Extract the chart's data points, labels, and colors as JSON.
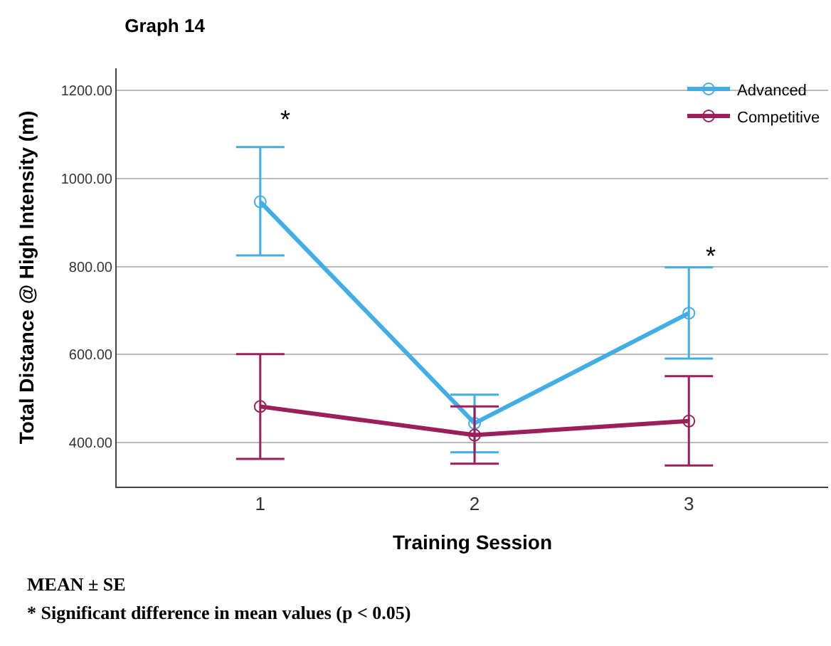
{
  "chart_data": {
    "type": "line",
    "title": "Graph 14",
    "xlabel": "Training Session",
    "ylabel": "Total Distance @ High Intensity (m)",
    "categories": [
      "1",
      "2",
      "3"
    ],
    "series": [
      {
        "name": "Advanced",
        "color": "#41aee6",
        "values": [
          947,
          444,
          694
        ],
        "errors": [
          [
            825,
            1071
          ],
          [
            378,
            509
          ],
          [
            591,
            798
          ]
        ]
      },
      {
        "name": "Competitive",
        "color": "#9b2059",
        "values": [
          482,
          417,
          449
        ],
        "errors": [
          [
            363,
            601
          ],
          [
            352,
            482
          ],
          [
            348,
            551
          ]
        ]
      }
    ],
    "ylim": [
      300,
      1250
    ],
    "yticks": [
      {
        "value": 400,
        "label": "400.00"
      },
      {
        "value": 600,
        "label": "600.00"
      },
      {
        "value": 800,
        "label": "800.00"
      },
      {
        "value": 1000,
        "label": "1000.00"
      },
      {
        "value": 1200,
        "label": "1200.00"
      }
    ],
    "grid": "y",
    "legend": "top right",
    "marker": "circle",
    "line_style": "solid",
    "annotations": [
      "*",
      "*",
      "MEAN ± SE",
      "* Significant difference in mean values (p < 0.05)"
    ]
  }
}
